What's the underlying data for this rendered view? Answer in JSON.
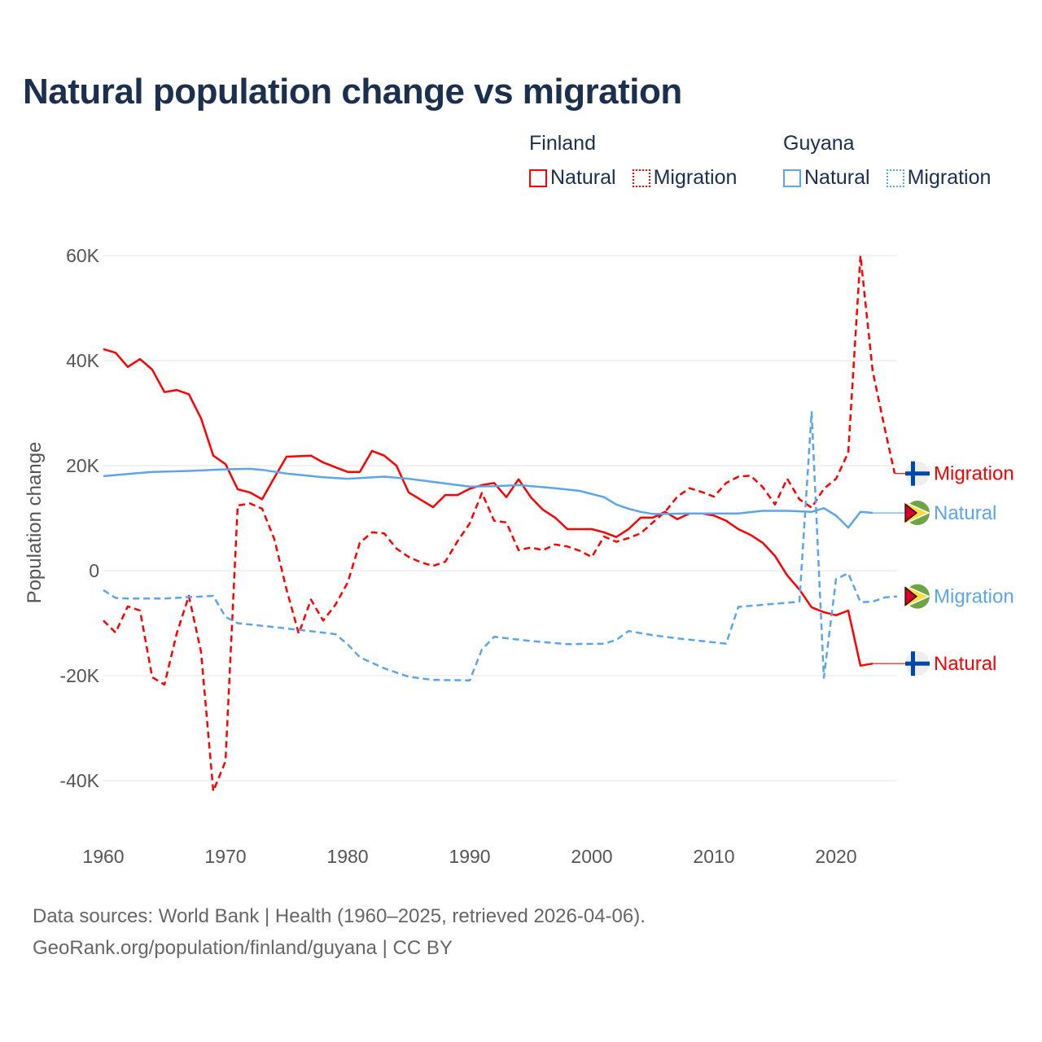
{
  "title": "Natural population change vs migration",
  "legend": {
    "groups": [
      {
        "name": "Finland",
        "color": "#ff0000",
        "items": [
          "Natural",
          "Migration"
        ]
      },
      {
        "name": "Guyana",
        "color": "#5aa5ec",
        "items": [
          "Natural",
          "Migration"
        ]
      }
    ]
  },
  "footer": {
    "line1": "Data sources: World Bank | Health (1960–2025, retrieved 2026-04-06).",
    "line2": "GeoRank.org/population/finland/guyana | CC BY"
  },
  "chart_data": {
    "type": "line",
    "title": "Natural population change vs migration",
    "xlabel": "",
    "ylabel": "Population change",
    "xlim": [
      1960,
      2025
    ],
    "ylim": [
      -50000,
      60000
    ],
    "x_ticks": [
      1960,
      1970,
      1980,
      1990,
      2000,
      2010,
      2020
    ],
    "y_ticks": [
      {
        "v": 60000,
        "label": "60K"
      },
      {
        "v": 40000,
        "label": "40K"
      },
      {
        "v": 20000,
        "label": "20K"
      },
      {
        "v": 0,
        "label": "0"
      },
      {
        "v": -20000,
        "label": "-20K"
      },
      {
        "v": -40000,
        "label": "-40K"
      }
    ],
    "grid": true,
    "series": [
      {
        "country": "Finland",
        "name": "Natural",
        "color": "#ff0000",
        "dash": false,
        "end_label": "Natural",
        "flag": "finland",
        "points": [
          [
            1960,
            42200
          ],
          [
            1961,
            41500
          ],
          [
            1962,
            38800
          ],
          [
            1963,
            40300
          ],
          [
            1964,
            38300
          ],
          [
            1965,
            34000
          ],
          [
            1966,
            34400
          ],
          [
            1967,
            33600
          ],
          [
            1968,
            29000
          ],
          [
            1969,
            21900
          ],
          [
            1970,
            20300
          ],
          [
            1971,
            15500
          ],
          [
            1972,
            14900
          ],
          [
            1973,
            13600
          ],
          [
            1974,
            17700
          ],
          [
            1975,
            21700
          ],
          [
            1976,
            21800
          ],
          [
            1977,
            21900
          ],
          [
            1978,
            20600
          ],
          [
            1979,
            19700
          ],
          [
            1980,
            18800
          ],
          [
            1981,
            18800
          ],
          [
            1982,
            22800
          ],
          [
            1983,
            21900
          ],
          [
            1984,
            20000
          ],
          [
            1985,
            14900
          ],
          [
            1986,
            13500
          ],
          [
            1987,
            12100
          ],
          [
            1988,
            14400
          ],
          [
            1989,
            14400
          ],
          [
            1990,
            15600
          ],
          [
            1991,
            16300
          ],
          [
            1992,
            16700
          ],
          [
            1993,
            14000
          ],
          [
            1994,
            17400
          ],
          [
            1995,
            14000
          ],
          [
            1996,
            11600
          ],
          [
            1997,
            10100
          ],
          [
            1998,
            7900
          ],
          [
            1999,
            7900
          ],
          [
            2000,
            7900
          ],
          [
            2001,
            7300
          ],
          [
            2002,
            6400
          ],
          [
            2003,
            7900
          ],
          [
            2004,
            10100
          ],
          [
            2005,
            10100
          ],
          [
            2006,
            11200
          ],
          [
            2007,
            9800
          ],
          [
            2008,
            10900
          ],
          [
            2009,
            10900
          ],
          [
            2010,
            10500
          ],
          [
            2011,
            9500
          ],
          [
            2012,
            7900
          ],
          [
            2013,
            6800
          ],
          [
            2014,
            5300
          ],
          [
            2015,
            2800
          ],
          [
            2016,
            -900
          ],
          [
            2017,
            -3600
          ],
          [
            2018,
            -7000
          ],
          [
            2019,
            -7900
          ],
          [
            2020,
            -8500
          ],
          [
            2021,
            -7600
          ],
          [
            2022,
            -18100
          ],
          [
            2023,
            -17700
          ]
        ],
        "extend_to": 2025
      },
      {
        "country": "Finland",
        "name": "Migration",
        "color": "#ff0000",
        "dash": true,
        "end_label": "Migration",
        "flag": "finland",
        "points": [
          [
            1960,
            -9500
          ],
          [
            1961,
            -11800
          ],
          [
            1962,
            -6800
          ],
          [
            1963,
            -7600
          ],
          [
            1964,
            -20300
          ],
          [
            1965,
            -21700
          ],
          [
            1966,
            -12000
          ],
          [
            1967,
            -4800
          ],
          [
            1968,
            -15500
          ],
          [
            1969,
            -42000
          ],
          [
            1970,
            -36300
          ],
          [
            1971,
            12400
          ],
          [
            1972,
            12800
          ],
          [
            1973,
            11800
          ],
          [
            1974,
            6000
          ],
          [
            1975,
            -3600
          ],
          [
            1976,
            -12000
          ],
          [
            1977,
            -5500
          ],
          [
            1978,
            -9500
          ],
          [
            1979,
            -6500
          ],
          [
            1980,
            -2300
          ],
          [
            1981,
            5300
          ],
          [
            1982,
            7300
          ],
          [
            1983,
            7100
          ],
          [
            1984,
            4200
          ],
          [
            1985,
            2600
          ],
          [
            1986,
            1600
          ],
          [
            1987,
            900
          ],
          [
            1988,
            1700
          ],
          [
            1989,
            5600
          ],
          [
            1990,
            9000
          ],
          [
            1991,
            14800
          ],
          [
            1992,
            9500
          ],
          [
            1993,
            9200
          ],
          [
            1994,
            3900
          ],
          [
            1995,
            4400
          ],
          [
            1996,
            3900
          ],
          [
            1997,
            5000
          ],
          [
            1998,
            4600
          ],
          [
            1999,
            3800
          ],
          [
            2000,
            2600
          ],
          [
            2001,
            6500
          ],
          [
            2002,
            5500
          ],
          [
            2003,
            6200
          ],
          [
            2004,
            7100
          ],
          [
            2005,
            9200
          ],
          [
            2006,
            11200
          ],
          [
            2007,
            14100
          ],
          [
            2008,
            15700
          ],
          [
            2009,
            15000
          ],
          [
            2010,
            14100
          ],
          [
            2011,
            16700
          ],
          [
            2012,
            17900
          ],
          [
            2013,
            18100
          ],
          [
            2014,
            15900
          ],
          [
            2015,
            12600
          ],
          [
            2016,
            17500
          ],
          [
            2017,
            13600
          ],
          [
            2018,
            12000
          ],
          [
            2019,
            15600
          ],
          [
            2020,
            17500
          ],
          [
            2021,
            22500
          ],
          [
            2022,
            60000
          ],
          [
            2023,
            38000
          ],
          [
            2024,
            27000
          ],
          [
            2024.8,
            18500
          ]
        ],
        "extend_to": 2025
      },
      {
        "country": "Guyana",
        "name": "Natural",
        "color": "#5aa5ec",
        "dash": false,
        "end_label": "Natural",
        "flag": "guyana",
        "points": [
          [
            1960,
            18000
          ],
          [
            1962,
            18400
          ],
          [
            1964,
            18800
          ],
          [
            1967,
            19000
          ],
          [
            1970,
            19300
          ],
          [
            1972,
            19400
          ],
          [
            1973,
            19200
          ],
          [
            1975,
            18500
          ],
          [
            1978,
            17800
          ],
          [
            1980,
            17500
          ],
          [
            1983,
            17900
          ],
          [
            1985,
            17500
          ],
          [
            1988,
            16600
          ],
          [
            1990,
            16000
          ],
          [
            1992,
            16100
          ],
          [
            1994,
            16300
          ],
          [
            1997,
            15700
          ],
          [
            1999,
            15200
          ],
          [
            2001,
            14000
          ],
          [
            2002,
            12600
          ],
          [
            2003,
            11800
          ],
          [
            2004,
            11200
          ],
          [
            2005,
            10800
          ],
          [
            2006,
            10800
          ],
          [
            2008,
            10900
          ],
          [
            2010,
            10900
          ],
          [
            2012,
            10900
          ],
          [
            2014,
            11400
          ],
          [
            2016,
            11400
          ],
          [
            2018,
            11200
          ],
          [
            2019,
            11900
          ],
          [
            2020,
            10500
          ],
          [
            2021,
            8200
          ],
          [
            2022,
            11200
          ],
          [
            2023,
            11000
          ]
        ],
        "extend_to": 2025
      },
      {
        "country": "Guyana",
        "name": "Migration",
        "color": "#5aa5ec",
        "dash": true,
        "end_label": "Migration",
        "flag": "guyana",
        "points": [
          [
            1960,
            -3700
          ],
          [
            1961,
            -5200
          ],
          [
            1962,
            -5300
          ],
          [
            1965,
            -5300
          ],
          [
            1969,
            -4800
          ],
          [
            1970,
            -8800
          ],
          [
            1971,
            -10000
          ],
          [
            1975,
            -11000
          ],
          [
            1978,
            -11800
          ],
          [
            1979,
            -12100
          ],
          [
            1980,
            -14000
          ],
          [
            1981,
            -16500
          ],
          [
            1983,
            -18600
          ],
          [
            1985,
            -20200
          ],
          [
            1987,
            -20800
          ],
          [
            1990,
            -20900
          ],
          [
            1991,
            -15000
          ],
          [
            1992,
            -12600
          ],
          [
            1995,
            -13400
          ],
          [
            1998,
            -14000
          ],
          [
            2001,
            -13900
          ],
          [
            2002,
            -13200
          ],
          [
            2003,
            -11500
          ],
          [
            2005,
            -12300
          ],
          [
            2007,
            -12900
          ],
          [
            2011,
            -13900
          ],
          [
            2012,
            -6900
          ],
          [
            2017,
            -5900
          ],
          [
            2018,
            30200
          ],
          [
            2019,
            -20400
          ],
          [
            2020,
            -1600
          ],
          [
            2021,
            -500
          ],
          [
            2022,
            -6000
          ],
          [
            2023,
            -5900
          ],
          [
            2024,
            -5100
          ],
          [
            2025,
            -4900
          ]
        ],
        "extend_to": 2025
      }
    ]
  }
}
